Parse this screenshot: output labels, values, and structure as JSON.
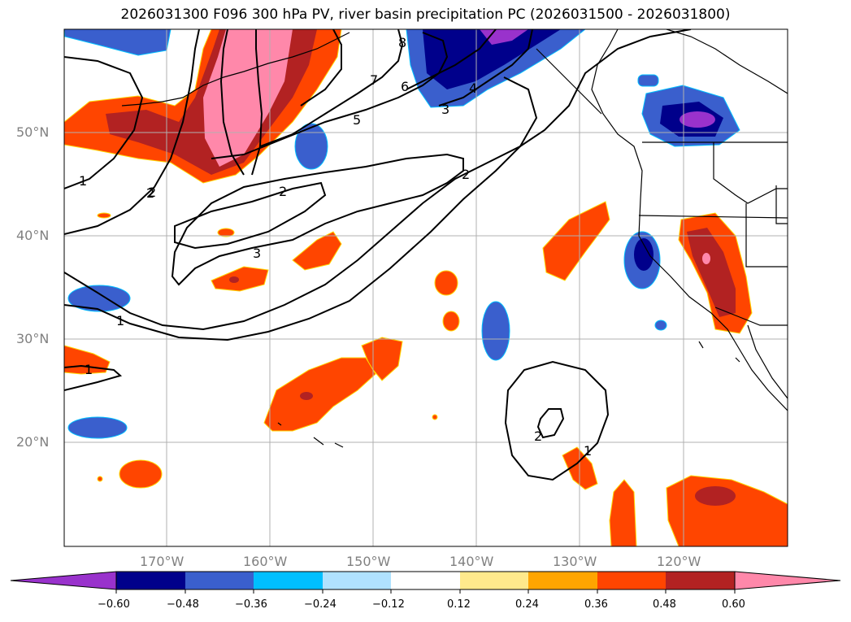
{
  "title": "2026031300 F096 300 hPa PV, river basin precipitation PC (2026031500 - 2026031800)",
  "lat_labels": [
    "50°N",
    "40°N",
    "30°N",
    "20°N"
  ],
  "lon_labels": [
    "170°W",
    "160°W",
    "150°W",
    "140°W",
    "130°W",
    "120°W"
  ],
  "contour_labels": [
    "1",
    "2",
    "2",
    "3",
    "1",
    "1",
    "2",
    "3",
    "4",
    "5",
    "6",
    "7",
    "8",
    "2",
    "2",
    "1"
  ],
  "colorbar": {
    "ticks": [
      "−0.60",
      "−0.48",
      "−0.36",
      "−0.24",
      "−0.12",
      "0.12",
      "0.24",
      "0.36",
      "0.48",
      "0.60"
    ],
    "colors": [
      "#9932cc",
      "#00008b",
      "#3a5fcd",
      "#00bfff",
      "#b0e2ff",
      "#ffffff",
      "#ffe98c",
      "#ffa500",
      "#ff4500",
      "#b22222",
      "#ff88aa",
      "#ff88aa"
    ]
  },
  "shading": {
    "neg_strong": "#9932cc",
    "neg_darkblue": "#00008b",
    "neg_blue": "#3a5fcd",
    "neg_cyan": "#00bfff",
    "pos_orange": "#ff4500",
    "pos_red": "#b22222",
    "pos_pink": "#ff88aa"
  }
}
